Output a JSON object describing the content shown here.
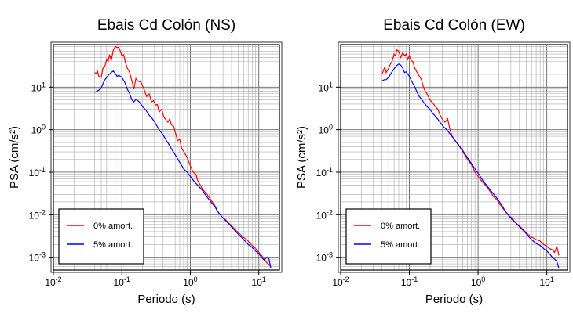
{
  "chart_data": [
    {
      "type": "line",
      "title": "Ebais Cd Colón (NS)",
      "xlabel": "Periodo (s)",
      "ylabel": "PSA (cm/s²)",
      "x_scale": "log",
      "y_scale": "log",
      "xlim": [
        0.01,
        20
      ],
      "ylim": [
        0.0005,
        100
      ],
      "grid": true,
      "legend_position": "bottom-left",
      "x_ticks": [
        0.01,
        0.1,
        1,
        10
      ],
      "y_ticks": [
        0.001,
        0.01,
        0.1,
        1,
        10
      ],
      "series": [
        {
          "name": "0% amort.",
          "color": "#ff0000",
          "points": [
            [
              0.04,
              22
            ],
            [
              0.042,
              21
            ],
            [
              0.044,
              24
            ],
            [
              0.046,
              18
            ],
            [
              0.05,
              17
            ],
            [
              0.053,
              28
            ],
            [
              0.056,
              30
            ],
            [
              0.06,
              45
            ],
            [
              0.063,
              40
            ],
            [
              0.066,
              58
            ],
            [
              0.07,
              42
            ],
            [
              0.075,
              74
            ],
            [
              0.08,
              90
            ],
            [
              0.085,
              85
            ],
            [
              0.09,
              88
            ],
            [
              0.095,
              70
            ],
            [
              0.1,
              55
            ],
            [
              0.106,
              58
            ],
            [
              0.112,
              40
            ],
            [
              0.12,
              28
            ],
            [
              0.13,
              22
            ],
            [
              0.14,
              14
            ],
            [
              0.15,
              9
            ],
            [
              0.16,
              16
            ],
            [
              0.17,
              14
            ],
            [
              0.19,
              13
            ],
            [
              0.21,
              9
            ],
            [
              0.23,
              6
            ],
            [
              0.25,
              7
            ],
            [
              0.27,
              4.5
            ],
            [
              0.29,
              4.8
            ],
            [
              0.31,
              3.8
            ],
            [
              0.33,
              3.9
            ],
            [
              0.35,
              2.6
            ],
            [
              0.38,
              3.0
            ],
            [
              0.41,
              2.0
            ],
            [
              0.44,
              1.7
            ],
            [
              0.47,
              1.5
            ],
            [
              0.5,
              1.8
            ],
            [
              0.53,
              1.3
            ],
            [
              0.57,
              1.2
            ],
            [
              0.6,
              0.9
            ],
            [
              0.65,
              0.55
            ],
            [
              0.7,
              0.6
            ],
            [
              0.75,
              0.35
            ],
            [
              0.8,
              0.31
            ],
            [
              0.9,
              0.22
            ],
            [
              1.0,
              0.14
            ],
            [
              1.1,
              0.1
            ],
            [
              1.2,
              0.09
            ],
            [
              1.3,
              0.06
            ],
            [
              1.4,
              0.05
            ],
            [
              1.5,
              0.04
            ],
            [
              1.7,
              0.032
            ],
            [
              1.9,
              0.025
            ],
            [
              2.1,
              0.02
            ],
            [
              2.3,
              0.016
            ],
            [
              2.5,
              0.012
            ],
            [
              2.8,
              0.0095
            ],
            [
              3.0,
              0.0085
            ],
            [
              3.3,
              0.0075
            ],
            [
              3.6,
              0.0065
            ],
            [
              4.0,
              0.0055
            ],
            [
              4.5,
              0.0045
            ],
            [
              5.0,
              0.0038
            ],
            [
              5.5,
              0.0033
            ],
            [
              6.0,
              0.0029
            ],
            [
              6.5,
              0.0027
            ],
            [
              7.0,
              0.0024
            ],
            [
              7.5,
              0.0021
            ],
            [
              8.0,
              0.0019
            ],
            [
              9.0,
              0.0016
            ],
            [
              10.0,
              0.0013
            ],
            [
              11.0,
              0.0011
            ],
            [
              12.0,
              0.0009
            ],
            [
              13.0,
              0.00075
            ],
            [
              14.0,
              0.00068
            ],
            [
              15.0,
              0.0006
            ]
          ]
        },
        {
          "name": "5% amort.",
          "color": "#0000ff",
          "points": [
            [
              0.04,
              7.5
            ],
            [
              0.043,
              8.0
            ],
            [
              0.046,
              8.5
            ],
            [
              0.05,
              9.5
            ],
            [
              0.055,
              14
            ],
            [
              0.06,
              17
            ],
            [
              0.065,
              20
            ],
            [
              0.07,
              22
            ],
            [
              0.075,
              24
            ],
            [
              0.08,
              21
            ],
            [
              0.085,
              18
            ],
            [
              0.09,
              19
            ],
            [
              0.1,
              17
            ],
            [
              0.11,
              13
            ],
            [
              0.12,
              9
            ],
            [
              0.13,
              7
            ],
            [
              0.14,
              5
            ],
            [
              0.15,
              4.5
            ],
            [
              0.16,
              5.2
            ],
            [
              0.18,
              4.5
            ],
            [
              0.2,
              3.5
            ],
            [
              0.22,
              3.0
            ],
            [
              0.25,
              2.2
            ],
            [
              0.28,
              1.8
            ],
            [
              0.31,
              1.4
            ],
            [
              0.35,
              1.0
            ],
            [
              0.4,
              0.75
            ],
            [
              0.45,
              0.55
            ],
            [
              0.5,
              0.42
            ],
            [
              0.55,
              0.32
            ],
            [
              0.6,
              0.26
            ],
            [
              0.7,
              0.17
            ],
            [
              0.8,
              0.12
            ],
            [
              0.9,
              0.1
            ],
            [
              1.0,
              0.08
            ],
            [
              1.1,
              0.065
            ],
            [
              1.2,
              0.055
            ],
            [
              1.35,
              0.045
            ],
            [
              1.5,
              0.037
            ],
            [
              1.7,
              0.028
            ],
            [
              1.9,
              0.022
            ],
            [
              2.1,
              0.018
            ],
            [
              2.3,
              0.015
            ],
            [
              2.5,
              0.012
            ],
            [
              2.8,
              0.0095
            ],
            [
              3.1,
              0.008
            ],
            [
              3.5,
              0.0065
            ],
            [
              4.0,
              0.0052
            ],
            [
              4.5,
              0.0042
            ],
            [
              5.0,
              0.0035
            ],
            [
              5.5,
              0.003
            ],
            [
              6.0,
              0.0026
            ],
            [
              7.0,
              0.002
            ],
            [
              8.0,
              0.0017
            ],
            [
              9.0,
              0.0014
            ],
            [
              10.0,
              0.0012
            ],
            [
              11.0,
              0.001
            ],
            [
              12.0,
              0.00085
            ],
            [
              13.0,
              0.001
            ],
            [
              14.0,
              0.00095
            ],
            [
              15.0,
              0.00055
            ]
          ]
        }
      ]
    },
    {
      "type": "line",
      "title": "Ebais Cd Colón (EW)",
      "xlabel": "Periodo (s)",
      "ylabel": "PSA (cm/s²)",
      "x_scale": "log",
      "y_scale": "log",
      "xlim": [
        0.01,
        20
      ],
      "ylim": [
        0.0005,
        100
      ],
      "grid": true,
      "legend_position": "bottom-left",
      "x_ticks": [
        0.01,
        0.1,
        1,
        10
      ],
      "y_ticks": [
        0.001,
        0.01,
        0.1,
        1,
        10
      ],
      "series": [
        {
          "name": "0% amort.",
          "color": "#ff0000",
          "points": [
            [
              0.04,
              20
            ],
            [
              0.042,
              25
            ],
            [
              0.044,
              30
            ],
            [
              0.046,
              22
            ],
            [
              0.05,
              28
            ],
            [
              0.053,
              35
            ],
            [
              0.056,
              40
            ],
            [
              0.06,
              60
            ],
            [
              0.063,
              55
            ],
            [
              0.066,
              75
            ],
            [
              0.07,
              70
            ],
            [
              0.075,
              50
            ],
            [
              0.08,
              65
            ],
            [
              0.085,
              55
            ],
            [
              0.09,
              60
            ],
            [
              0.095,
              45
            ],
            [
              0.1,
              55
            ],
            [
              0.106,
              42
            ],
            [
              0.112,
              40
            ],
            [
              0.12,
              28
            ],
            [
              0.13,
              22
            ],
            [
              0.14,
              18
            ],
            [
              0.15,
              15
            ],
            [
              0.16,
              10
            ],
            [
              0.17,
              8
            ],
            [
              0.18,
              7
            ],
            [
              0.2,
              5.0
            ],
            [
              0.22,
              4.2
            ],
            [
              0.24,
              3.5
            ],
            [
              0.26,
              3.0
            ],
            [
              0.28,
              2.2
            ],
            [
              0.3,
              1.8
            ],
            [
              0.33,
              1.5
            ],
            [
              0.36,
              1.8
            ],
            [
              0.39,
              1.0
            ],
            [
              0.42,
              0.7
            ],
            [
              0.45,
              0.6
            ],
            [
              0.48,
              0.5
            ],
            [
              0.52,
              0.45
            ],
            [
              0.56,
              0.36
            ],
            [
              0.6,
              0.3
            ],
            [
              0.7,
              0.2
            ],
            [
              0.8,
              0.15
            ],
            [
              0.9,
              0.1
            ],
            [
              1.0,
              0.08
            ],
            [
              1.1,
              0.065
            ],
            [
              1.2,
              0.055
            ],
            [
              1.35,
              0.045
            ],
            [
              1.5,
              0.035
            ],
            [
              1.7,
              0.026
            ],
            [
              1.9,
              0.022
            ],
            [
              2.1,
              0.017
            ],
            [
              2.3,
              0.014
            ],
            [
              2.5,
              0.012
            ],
            [
              2.8,
              0.0095
            ],
            [
              3.1,
              0.0085
            ],
            [
              3.5,
              0.0065
            ],
            [
              4.0,
              0.0055
            ],
            [
              4.5,
              0.0045
            ],
            [
              5.0,
              0.0038
            ],
            [
              5.5,
              0.0033
            ],
            [
              6.0,
              0.003
            ],
            [
              7.0,
              0.0026
            ],
            [
              8.0,
              0.0024
            ],
            [
              9.0,
              0.002
            ],
            [
              10.0,
              0.0018
            ],
            [
              11.0,
              0.0016
            ],
            [
              12.0,
              0.0015
            ],
            [
              13.0,
              0.0013
            ],
            [
              14.0,
              0.0018
            ],
            [
              15.0,
              0.0011
            ]
          ]
        },
        {
          "name": "5% amort.",
          "color": "#0000ff",
          "points": [
            [
              0.04,
              14
            ],
            [
              0.043,
              15
            ],
            [
              0.046,
              15
            ],
            [
              0.05,
              17
            ],
            [
              0.055,
              22
            ],
            [
              0.06,
              27
            ],
            [
              0.065,
              32
            ],
            [
              0.07,
              35
            ],
            [
              0.075,
              33
            ],
            [
              0.08,
              28
            ],
            [
              0.085,
              22
            ],
            [
              0.09,
              23
            ],
            [
              0.1,
              18
            ],
            [
              0.11,
              13
            ],
            [
              0.12,
              10
            ],
            [
              0.13,
              7.5
            ],
            [
              0.14,
              6
            ],
            [
              0.15,
              5.2
            ],
            [
              0.16,
              4.5
            ],
            [
              0.18,
              3.5
            ],
            [
              0.2,
              3.0
            ],
            [
              0.22,
              2.4
            ],
            [
              0.25,
              1.9
            ],
            [
              0.28,
              1.5
            ],
            [
              0.31,
              1.2
            ],
            [
              0.35,
              1.0
            ],
            [
              0.4,
              0.75
            ],
            [
              0.45,
              0.6
            ],
            [
              0.5,
              0.47
            ],
            [
              0.55,
              0.38
            ],
            [
              0.6,
              0.32
            ],
            [
              0.7,
              0.22
            ],
            [
              0.8,
              0.16
            ],
            [
              0.9,
              0.12
            ],
            [
              1.0,
              0.095
            ],
            [
              1.1,
              0.075
            ],
            [
              1.2,
              0.06
            ],
            [
              1.35,
              0.048
            ],
            [
              1.5,
              0.038
            ],
            [
              1.7,
              0.03
            ],
            [
              1.9,
              0.024
            ],
            [
              2.1,
              0.019
            ],
            [
              2.3,
              0.015
            ],
            [
              2.5,
              0.012
            ],
            [
              2.8,
              0.0095
            ],
            [
              3.1,
              0.0078
            ],
            [
              3.5,
              0.0065
            ],
            [
              4.0,
              0.0052
            ],
            [
              4.5,
              0.0043
            ],
            [
              5.0,
              0.0036
            ],
            [
              5.5,
              0.003
            ],
            [
              6.0,
              0.0026
            ],
            [
              7.0,
              0.0021
            ],
            [
              8.0,
              0.0019
            ],
            [
              9.0,
              0.0016
            ],
            [
              10.0,
              0.0014
            ],
            [
              11.0,
              0.0012
            ],
            [
              12.0,
              0.001
            ],
            [
              13.0,
              0.0009
            ],
            [
              14.0,
              0.0008
            ],
            [
              15.0,
              0.00055
            ]
          ]
        }
      ]
    }
  ]
}
